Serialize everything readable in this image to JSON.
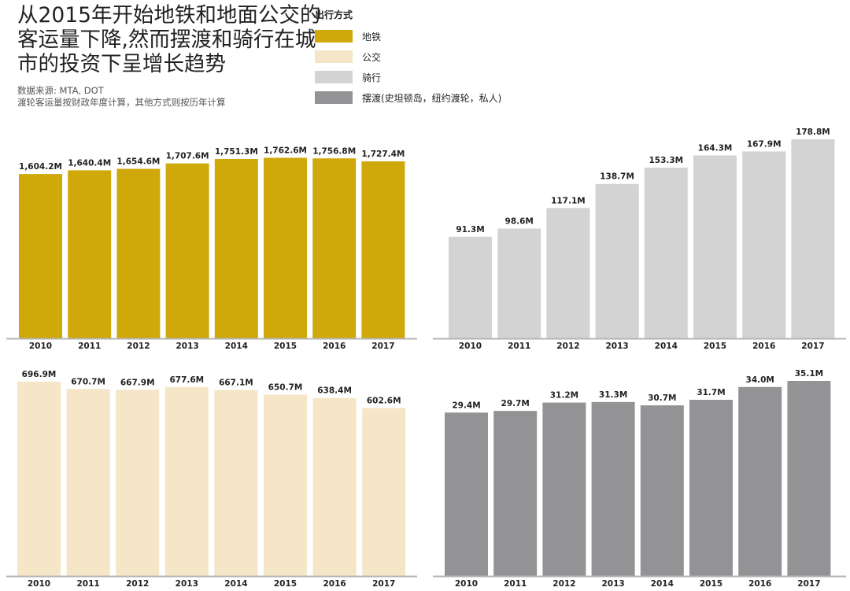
{
  "title_lines": [
    "从2015年开始地铁和地面公交的",
    "客运量下降,然而摆渡和骑行在城",
    "市的投资下呈增长趋势"
  ],
  "source": "数据来源: MTA, DOT",
  "note": "渡轮客运量按财政年度计算，其他方式则按历年计算",
  "legend": {
    "title": "出行方式",
    "items": [
      {
        "label": "地铁",
        "color": "#cfa80a"
      },
      {
        "label": "公交",
        "color": "#f4e6c6"
      },
      {
        "label": "骑行",
        "color": "#d3d3d4"
      },
      {
        "label": "摆渡(史坦顿岛，纽约渡轮，私人)",
        "color": "#939396"
      }
    ]
  },
  "chart_data": [
    {
      "type": "bar",
      "series_name": "地铁",
      "color": "#cfa80a",
      "categories": [
        "2010",
        "2011",
        "2012",
        "2013",
        "2014",
        "2015",
        "2016",
        "2017"
      ],
      "values": [
        1604.2,
        1640.4,
        1654.6,
        1707.6,
        1751.3,
        1762.6,
        1756.8,
        1727.4
      ],
      "labels": [
        "1,604.2M",
        "1,640.4M",
        "1,654.6M",
        "1,707.6M",
        "1,751.3M",
        "1,762.6M",
        "1,756.8M",
        "1,727.4M"
      ]
    },
    {
      "type": "bar",
      "series_name": "骑行",
      "color": "#d3d3d4",
      "categories": [
        "2010",
        "2011",
        "2012",
        "2013",
        "2014",
        "2015",
        "2016",
        "2017"
      ],
      "values": [
        91.3,
        98.6,
        117.1,
        138.7,
        153.3,
        164.3,
        167.9,
        178.8
      ],
      "labels": [
        "91.3M",
        "98.6M",
        "117.1M",
        "138.7M",
        "153.3M",
        "164.3M",
        "167.9M",
        "178.8M"
      ]
    },
    {
      "type": "bar",
      "series_name": "公交",
      "color": "#f4e6c6",
      "categories": [
        "2010",
        "2011",
        "2012",
        "2013",
        "2014",
        "2015",
        "2016",
        "2017"
      ],
      "values": [
        696.9,
        670.7,
        667.9,
        677.6,
        667.1,
        650.7,
        638.4,
        602.6
      ],
      "labels": [
        "696.9M",
        "670.7M",
        "667.9M",
        "677.6M",
        "667.1M",
        "650.7M",
        "638.4M",
        "602.6M"
      ]
    },
    {
      "type": "bar",
      "series_name": "摆渡",
      "color": "#939396",
      "categories": [
        "2010",
        "2011",
        "2012",
        "2013",
        "2014",
        "2015",
        "2016",
        "2017"
      ],
      "values": [
        29.4,
        29.7,
        31.2,
        31.3,
        30.7,
        31.7,
        34.0,
        35.1
      ],
      "labels": [
        "29.4M",
        "29.7M",
        "31.2M",
        "31.3M",
        "30.7M",
        "31.7M",
        "34.0M",
        "35.1M"
      ]
    }
  ]
}
